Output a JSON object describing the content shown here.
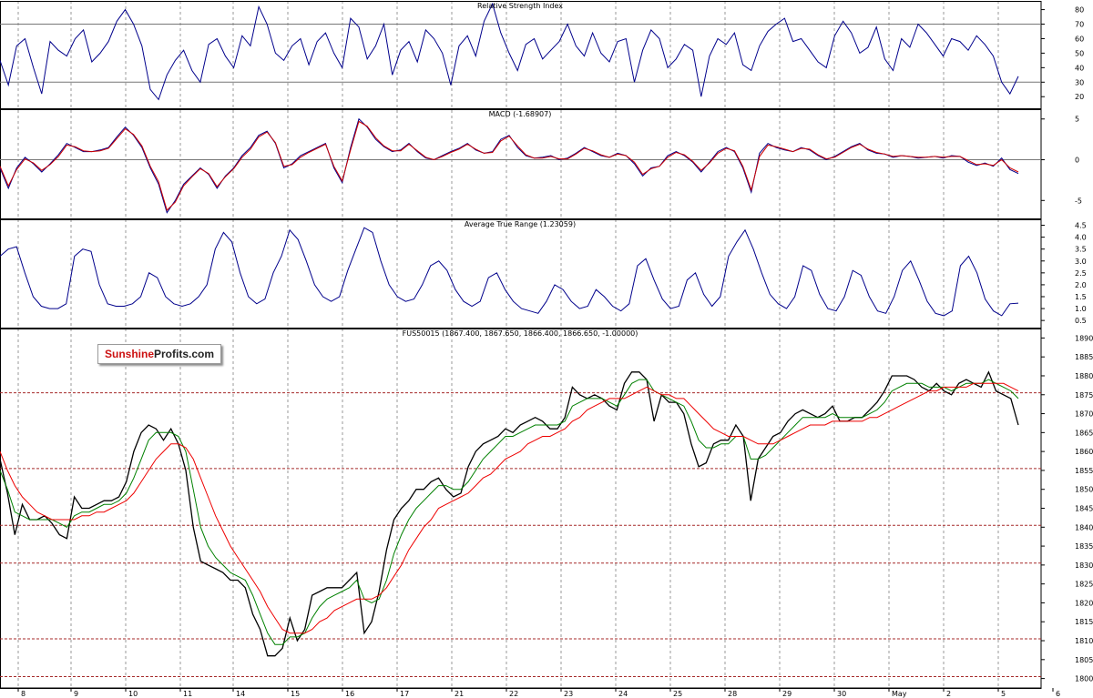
{
  "logo": {
    "part1": "Sunshine",
    "part2": "Profits.com"
  },
  "date_labels": [
    "8",
    "9",
    "10",
    "11",
    "14",
    "15",
    "16",
    "17",
    "21",
    "22",
    "23",
    "24",
    "25",
    "28",
    "29",
    "30",
    "May",
    "2",
    "5",
    "6"
  ],
  "colors": {
    "rsi": "#00008b",
    "macd": "#00008b",
    "macd_signal": "#cc0000",
    "atr": "#00008b",
    "price": "#000000",
    "ma_fast": "#008000",
    "ma_slow": "#ee0000",
    "level": "#a52a2a",
    "grid": "#9a9a9a"
  },
  "chart_data": [
    {
      "type": "line",
      "title": "Relative Strength Index",
      "yticks": [
        20,
        30,
        40,
        50,
        60,
        70,
        80
      ],
      "ylim": [
        12,
        86
      ],
      "ref_lines": [
        30,
        70
      ],
      "grid": true,
      "series": [
        {
          "color": "#00008b",
          "values": [
            45,
            28,
            55,
            60,
            40,
            22,
            58,
            52,
            48,
            60,
            66,
            44,
            50,
            58,
            72,
            80,
            70,
            55,
            25,
            18,
            35,
            45,
            52,
            38,
            30,
            56,
            60,
            48,
            40,
            62,
            55,
            82,
            70,
            50,
            45,
            55,
            60,
            42,
            58,
            64,
            50,
            40,
            74,
            68,
            46,
            55,
            70,
            35,
            52,
            58,
            44,
            66,
            60,
            50,
            28,
            55,
            62,
            48,
            72,
            84,
            64,
            50,
            38,
            56,
            60,
            46,
            52,
            58,
            70,
            55,
            48,
            64,
            50,
            44,
            58,
            60,
            30,
            52,
            66,
            60,
            40,
            46,
            56,
            52,
            20,
            48,
            60,
            56,
            64,
            42,
            38,
            55,
            65,
            70,
            74,
            58,
            60,
            52,
            44,
            40,
            62,
            72,
            64,
            50,
            54,
            68,
            46,
            38,
            60,
            54,
            70,
            64,
            56,
            48,
            60,
            58,
            52,
            62,
            56,
            48,
            30,
            22,
            34
          ]
        }
      ]
    },
    {
      "type": "line",
      "title": "MACD (-1.68907)",
      "yticks": [
        -5,
        0,
        5
      ],
      "ylim": [
        -7.2,
        6.2
      ],
      "ref_lines": [
        0
      ],
      "grid": true,
      "series": [
        {
          "color": "#00008b",
          "values": [
            -1,
            -3.5,
            -1,
            0.3,
            -0.5,
            -1.5,
            -0.5,
            0.6,
            2,
            1.5,
            1,
            1,
            1.2,
            1.5,
            2.8,
            4,
            3,
            1.5,
            -1,
            -3,
            -6.5,
            -5,
            -3,
            -2,
            -1,
            -1.8,
            -3.5,
            -2,
            -1,
            0.5,
            1.5,
            3,
            3.5,
            2,
            -1,
            -0.5,
            0.5,
            1,
            1.5,
            2,
            -1,
            -2.8,
            1.5,
            5,
            4,
            2.5,
            1.6,
            1,
            1.2,
            2,
            1,
            0.2,
            0,
            0.5,
            1,
            1.4,
            2,
            1.2,
            0.8,
            1,
            2.5,
            3,
            1.5,
            0.5,
            0.2,
            0.3,
            0.5,
            0,
            0.2,
            0.8,
            1.5,
            1,
            0.5,
            0.3,
            0.8,
            0.5,
            -0.5,
            -2,
            -1,
            -0.8,
            0.5,
            1,
            0.5,
            -0.3,
            -1.5,
            -0.3,
            1,
            1.5,
            1,
            -1,
            -4,
            0.8,
            2,
            1.5,
            1.2,
            1,
            1.5,
            1.2,
            0.5,
            0,
            0.4,
            1,
            1.6,
            2,
            1.2,
            0.8,
            0.7,
            0.3,
            0.5,
            0.4,
            0.2,
            0.3,
            0.4,
            0.2,
            0.5,
            0.4,
            -0.3,
            -0.7,
            -0.4,
            -0.8,
            0.2,
            -1.2,
            -1.7
          ]
        },
        {
          "color": "#cc0000",
          "values": [
            -0.8,
            -3.2,
            -1.2,
            0.1,
            -0.4,
            -1.3,
            -0.6,
            0.4,
            1.8,
            1.6,
            1.1,
            1,
            1.1,
            1.4,
            2.6,
            3.8,
            3.1,
            1.7,
            -0.8,
            -2.7,
            -6.2,
            -5.2,
            -3.2,
            -2.1,
            -1.1,
            -1.7,
            -3.3,
            -2.1,
            -1.1,
            0.3,
            1.3,
            2.8,
            3.4,
            2.1,
            -0.8,
            -0.6,
            0.3,
            0.9,
            1.4,
            1.9,
            -0.8,
            -2.6,
            1.2,
            4.7,
            4.1,
            2.7,
            1.7,
            1.1,
            1.1,
            1.9,
            1.1,
            0.3,
            0,
            0.4,
            0.9,
            1.3,
            1.9,
            1.3,
            0.8,
            0.9,
            2.3,
            2.9,
            1.7,
            0.6,
            0.2,
            0.2,
            0.4,
            0.1,
            0.1,
            0.7,
            1.4,
            1.1,
            0.6,
            0.3,
            0.7,
            0.5,
            -0.3,
            -1.8,
            -1.1,
            -0.8,
            0.3,
            0.9,
            0.6,
            -0.2,
            -1.3,
            -0.4,
            0.8,
            1.4,
            1.1,
            -0.8,
            -3.7,
            0.4,
            1.8,
            1.6,
            1.3,
            1,
            1.4,
            1.3,
            0.6,
            0.1,
            0.3,
            0.9,
            1.5,
            1.9,
            1.3,
            0.9,
            0.7,
            0.4,
            0.5,
            0.4,
            0.3,
            0.3,
            0.4,
            0.3,
            0.4,
            0.4,
            -0.1,
            -0.6,
            -0.5,
            -0.7,
            0,
            -1,
            -1.5
          ]
        }
      ]
    },
    {
      "type": "line",
      "title": "Average True Range (1.23059)",
      "yticks": [
        0.5,
        1.0,
        1.5,
        2.0,
        2.5,
        3.0,
        3.5,
        4.0,
        4.5
      ],
      "ylim": [
        0.2,
        4.75
      ],
      "grid": true,
      "series": [
        {
          "color": "#00008b",
          "values": [
            3.2,
            3.5,
            3.6,
            2.5,
            1.5,
            1.1,
            1,
            1,
            1.2,
            3.2,
            3.5,
            3.4,
            2,
            1.2,
            1.1,
            1.1,
            1.2,
            1.5,
            2.5,
            2.3,
            1.5,
            1.2,
            1.1,
            1.2,
            1.5,
            2,
            3.5,
            4.2,
            3.8,
            2.5,
            1.5,
            1.2,
            1.4,
            2.5,
            3.2,
            4.3,
            3.9,
            3,
            2,
            1.5,
            1.3,
            1.5,
            2.6,
            3.5,
            4.4,
            4.2,
            3,
            2,
            1.5,
            1.3,
            1.4,
            2,
            2.8,
            3,
            2.6,
            1.8,
            1.3,
            1.1,
            1.3,
            2.3,
            2.5,
            1.8,
            1.3,
            1,
            0.9,
            0.8,
            1.3,
            2,
            1.8,
            1.3,
            1,
            1.1,
            1.8,
            1.5,
            1.1,
            0.9,
            1.2,
            2.8,
            3.1,
            2.2,
            1.4,
            1,
            1.1,
            2.2,
            2.5,
            1.6,
            1.1,
            1.5,
            3.2,
            3.8,
            4.3,
            3.5,
            2.5,
            1.6,
            1.2,
            1,
            1.5,
            2.8,
            2.6,
            1.6,
            1,
            0.9,
            1.5,
            2.6,
            2.4,
            1.5,
            0.9,
            0.8,
            1.5,
            2.6,
            3,
            2.2,
            1.3,
            0.8,
            0.7,
            0.9,
            2.8,
            3.2,
            2.5,
            1.4,
            0.9,
            0.7,
            1.2,
            1.23
          ]
        }
      ]
    },
    {
      "type": "line",
      "title": "FUS50015 (1867.400, 1867.650, 1866.400, 1866.650, -1.00000)",
      "yticks": [
        1800,
        1805,
        1810,
        1815,
        1820,
        1825,
        1830,
        1835,
        1840,
        1845,
        1850,
        1855,
        1860,
        1865,
        1870,
        1875,
        1880,
        1885,
        1890
      ],
      "ylim": [
        1797.5,
        1892.5
      ],
      "ref_lines": [
        1875.5,
        1855.5,
        1840.5,
        1830.5,
        1810.5,
        1800.5
      ],
      "grid": true,
      "series": [
        {
          "color": "#000000",
          "values": [
            1858,
            1849,
            1838,
            1846,
            1842,
            1842,
            1843,
            1841,
            1838,
            1837,
            1848,
            1845,
            1845,
            1846,
            1847,
            1847,
            1848,
            1852,
            1860,
            1865,
            1867,
            1866,
            1863,
            1866,
            1862,
            1855,
            1840,
            1831,
            1830,
            1829,
            1828,
            1826,
            1826,
            1824,
            1817,
            1813,
            1806,
            1806,
            1808,
            1816,
            1810,
            1813,
            1822,
            1823,
            1824,
            1824,
            1824,
            1826,
            1828,
            1812,
            1815,
            1823,
            1834,
            1842,
            1845,
            1847,
            1850,
            1850,
            1852,
            1853,
            1850,
            1848,
            1849,
            1856,
            1860,
            1862,
            1863,
            1864,
            1866,
            1865,
            1867,
            1868,
            1869,
            1868,
            1866,
            1866,
            1869,
            1877,
            1875,
            1874,
            1875,
            1874,
            1872,
            1871,
            1878,
            1881,
            1881,
            1879,
            1868,
            1875,
            1873,
            1873,
            1870,
            1862,
            1856,
            1857,
            1862,
            1863,
            1863,
            1867,
            1864,
            1847,
            1858,
            1861,
            1864,
            1865,
            1868,
            1870,
            1871,
            1870,
            1869,
            1870,
            1872,
            1868,
            1868,
            1869,
            1869,
            1871,
            1873,
            1876,
            1880,
            1880,
            1880,
            1879,
            1877,
            1876,
            1878,
            1876,
            1875,
            1878,
            1879,
            1878,
            1877,
            1881,
            1876,
            1875,
            1874,
            1867
          ]
        },
        {
          "color": "#008000",
          "values": [
            1855,
            1850,
            1844,
            1843,
            1842,
            1842,
            1842,
            1842,
            1841,
            1840,
            1843,
            1844,
            1844,
            1845,
            1846,
            1846,
            1847,
            1849,
            1853,
            1858,
            1863,
            1865,
            1865,
            1865,
            1864,
            1860,
            1850,
            1840,
            1835,
            1832,
            1830,
            1828,
            1827,
            1826,
            1822,
            1817,
            1812,
            1809,
            1809,
            1811,
            1811,
            1812,
            1816,
            1819,
            1821,
            1822,
            1823,
            1824,
            1826,
            1821,
            1820,
            1821,
            1826,
            1833,
            1838,
            1842,
            1845,
            1847,
            1849,
            1851,
            1851,
            1850,
            1850,
            1852,
            1855,
            1858,
            1860,
            1862,
            1864,
            1864,
            1865,
            1866,
            1867,
            1867,
            1867,
            1867,
            1868,
            1872,
            1873,
            1874,
            1874,
            1874,
            1873,
            1872,
            1875,
            1878,
            1879,
            1879,
            1876,
            1875,
            1874,
            1873,
            1872,
            1868,
            1863,
            1861,
            1861,
            1862,
            1862,
            1864,
            1864,
            1858,
            1858,
            1859,
            1861,
            1863,
            1865,
            1867,
            1869,
            1869,
            1869,
            1869,
            1870,
            1869,
            1869,
            1869,
            1869,
            1870,
            1871,
            1873,
            1876,
            1877,
            1878,
            1878,
            1878,
            1877,
            1877,
            1877,
            1876,
            1877,
            1878,
            1878,
            1878,
            1879,
            1878,
            1877,
            1876,
            1874
          ]
        },
        {
          "color": "#ee0000",
          "values": [
            1860,
            1855,
            1851,
            1848,
            1846,
            1844,
            1843,
            1842,
            1842,
            1842,
            1842,
            1843,
            1843,
            1844,
            1844,
            1845,
            1846,
            1847,
            1849,
            1852,
            1855,
            1858,
            1860,
            1862,
            1862,
            1861,
            1858,
            1853,
            1848,
            1843,
            1839,
            1835,
            1832,
            1829,
            1826,
            1823,
            1819,
            1816,
            1813,
            1812,
            1812,
            1812,
            1813,
            1815,
            1816,
            1818,
            1819,
            1820,
            1821,
            1821,
            1821,
            1822,
            1824,
            1827,
            1830,
            1834,
            1837,
            1840,
            1842,
            1845,
            1846,
            1847,
            1848,
            1849,
            1851,
            1853,
            1854,
            1856,
            1858,
            1859,
            1860,
            1862,
            1863,
            1864,
            1864,
            1865,
            1866,
            1868,
            1869,
            1871,
            1872,
            1873,
            1874,
            1874,
            1874,
            1875,
            1876,
            1877,
            1876,
            1875,
            1875,
            1874,
            1874,
            1872,
            1870,
            1868,
            1866,
            1865,
            1864,
            1864,
            1864,
            1863,
            1862,
            1862,
            1862,
            1863,
            1864,
            1865,
            1866,
            1867,
            1867,
            1867,
            1868,
            1868,
            1868,
            1868,
            1868,
            1869,
            1869,
            1870,
            1871,
            1872,
            1873,
            1874,
            1875,
            1876,
            1876,
            1877,
            1877,
            1877,
            1877,
            1878,
            1878,
            1878,
            1878,
            1878,
            1877,
            1876
          ]
        }
      ]
    }
  ]
}
